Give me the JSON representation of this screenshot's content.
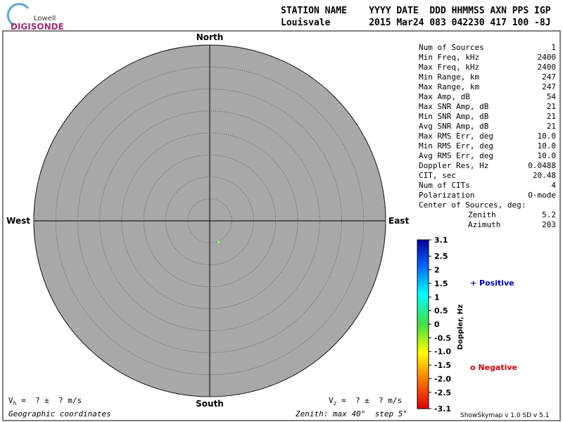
{
  "logo": {
    "top": "Lowell",
    "bottom": "DIGISONDE"
  },
  "header": {
    "line1": "STATION NAME    YYYY DATE  DDD HHMMSS AXN PPS IGP",
    "line2": "Louisvale       2015 Mar24 083 042230 417 100 -8J"
  },
  "chart_data": {
    "type": "polar",
    "directions": {
      "north": "North",
      "south": "South",
      "east": "East",
      "west": "West"
    },
    "rlim": [
      0,
      40
    ],
    "rticks": [
      5,
      10,
      15,
      20,
      25,
      30,
      35,
      40
    ],
    "azimuth_clockwise": false,
    "points": {
      "zenith": [
        5.2
      ],
      "azimuth": [
        203
      ],
      "color": "#80ff80"
    },
    "colorbar": {
      "label": "Doppler, Hz",
      "clim": [
        -3.1,
        3.1
      ],
      "ticks": [
        3.1,
        2.5,
        2,
        1.5,
        1,
        0.5,
        0,
        -0.5,
        {
          "value": -1,
          "label": "-1.0"
        },
        -1.5,
        {
          "value": -2,
          "label": "-2.0"
        },
        -2.5,
        -3.1
      ]
    },
    "legend": {
      "positive": "+ Positive",
      "negative": "o Negative"
    }
  },
  "stats": {
    "rows": [
      [
        "Num of Sources",
        "1"
      ],
      [
        "Min Freq, kHz",
        "2400"
      ],
      [
        "Max Freq, kHz",
        "2400"
      ],
      [
        "Min Range, km",
        "247"
      ],
      [
        "Max Range, km",
        "247"
      ],
      [
        "Max Amp, dB",
        "54"
      ],
      [
        "Max SNR Amp, dB",
        "21"
      ],
      [
        "Min SNR Amp, dB",
        "21"
      ],
      [
        "Avg SNR Amp, dB",
        "21"
      ],
      [
        "Max RMS Err, deg",
        "10.0"
      ],
      [
        "Min RMS Err, deg",
        "10.0"
      ],
      [
        "Avg RMS Err, deg",
        "10.0"
      ],
      [
        "Doppler Res, Hz",
        "0.0488"
      ],
      [
        "CIT, sec",
        "20.48"
      ],
      [
        "Num of CITs",
        "4"
      ],
      [
        "Polarization",
        "O-mode"
      ]
    ],
    "center_title": "Center of Sources, deg:",
    "center_rows": [
      [
        "Zenith",
        "5.2"
      ],
      [
        "Azimuth",
        "203"
      ]
    ]
  },
  "footer": {
    "vh": {
      "symbol": "V",
      "sub": "h",
      "text": " =  ? ±  ? m/s"
    },
    "vz": {
      "symbol": "V",
      "sub": "z",
      "text": " =  ? ±  ? m/s"
    },
    "coords": "Geographic coordinates",
    "zenith": "Zenith: max 40°  step 5°",
    "version": "ShowSkymap v 1.0  SD v 5.1"
  }
}
